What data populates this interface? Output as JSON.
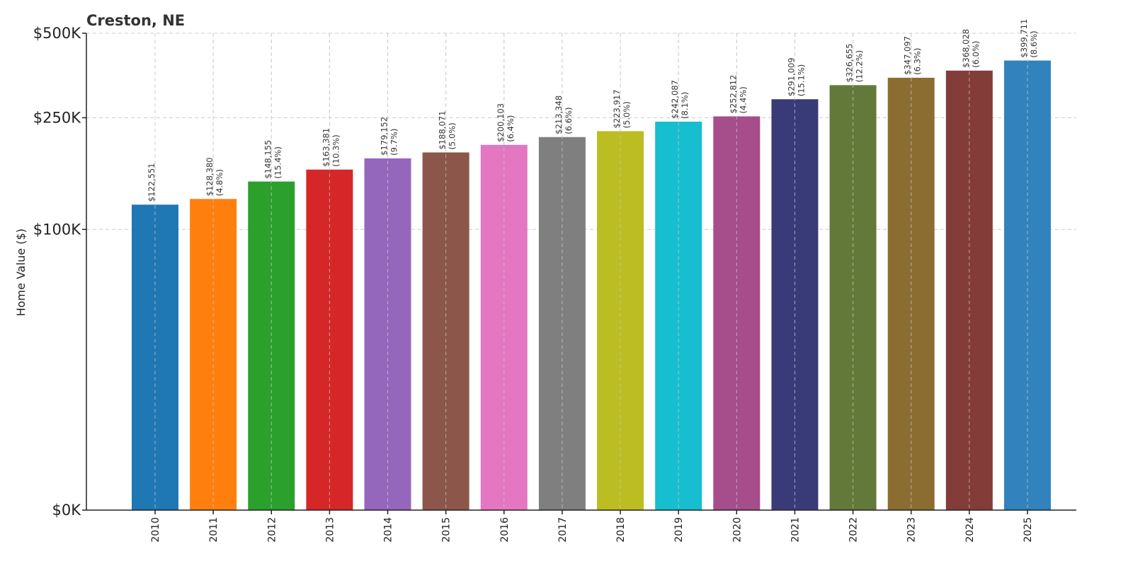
{
  "chart_data": {
    "type": "bar",
    "title": "Creston, NE",
    "xlabel": "",
    "ylabel": "Home Value ($)",
    "ylim": [
      0,
      500000
    ],
    "y_scale": "symlog-like (linear 0–100K, compressed above)",
    "grid": true,
    "yticks": [
      {
        "value": 0,
        "label": "$0K"
      },
      {
        "value": 100000,
        "label": "$100K"
      },
      {
        "value": 250000,
        "label": "$250K"
      },
      {
        "value": 500000,
        "label": "$500K"
      }
    ],
    "categories": [
      "2010",
      "2011",
      "2012",
      "2013",
      "2014",
      "2015",
      "2016",
      "2017",
      "2018",
      "2019",
      "2020",
      "2021",
      "2022",
      "2023",
      "2024",
      "2025"
    ],
    "values": [
      122551,
      128380,
      148155,
      163381,
      179152,
      188071,
      200103,
      213348,
      223917,
      242087,
      252812,
      291009,
      326655,
      347097,
      368028,
      399711
    ],
    "value_labels": [
      "$122,551",
      "$128,380",
      "$148,155",
      "$163,381",
      "$179,152",
      "$188,071",
      "$200,103",
      "$213,348",
      "$223,917",
      "$242,087",
      "$252,812",
      "$291,009",
      "$326,655",
      "$347,097",
      "$368,028",
      "$399,711"
    ],
    "change_labels": [
      "",
      "(4.8%)",
      "(15.4%)",
      "(10.3%)",
      "(9.7%)",
      "(5.0%)",
      "(6.4%)",
      "(6.6%)",
      "(5.0%)",
      "(8.1%)",
      "(4.4%)",
      "(15.1%)",
      "(12.2%)",
      "(6.3%)",
      "(6.0%)",
      "(8.6%)"
    ],
    "colors": [
      "#1f77b4",
      "#ff7f0e",
      "#2ca02c",
      "#d62728",
      "#9467bd",
      "#8c564b",
      "#e377c2",
      "#7f7f7f",
      "#bcbd22",
      "#17becf",
      "#a64d8c",
      "#393b79",
      "#637939",
      "#8c6d31",
      "#843c39",
      "#3182bd"
    ]
  }
}
